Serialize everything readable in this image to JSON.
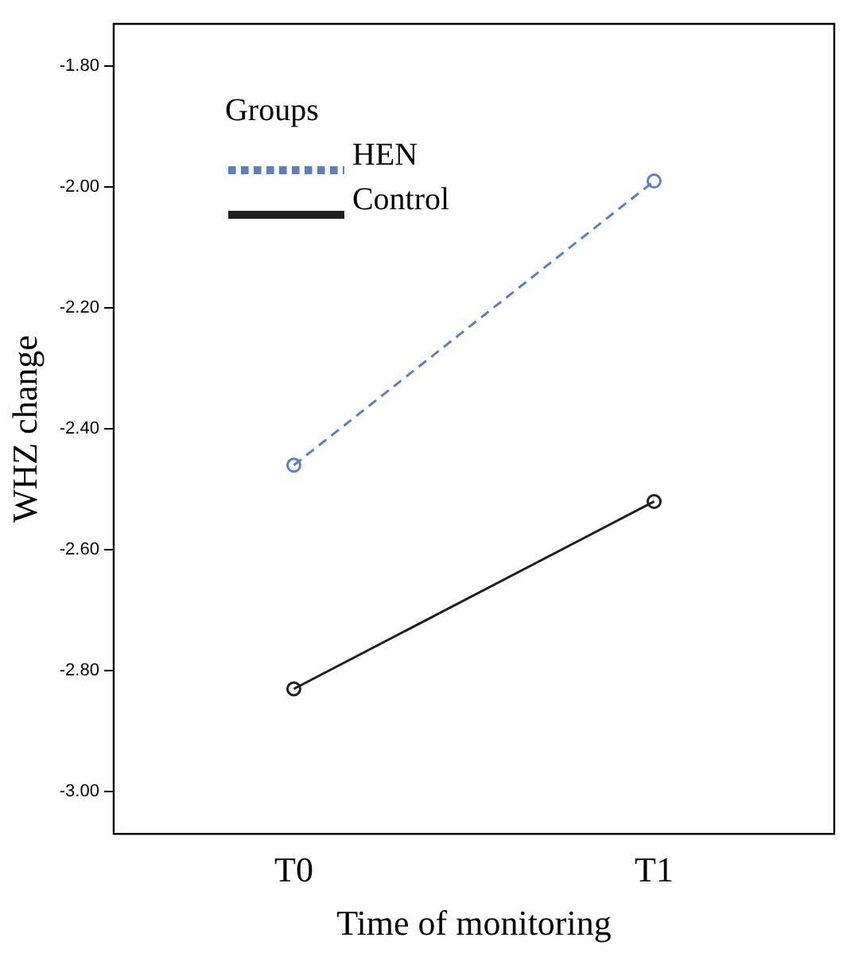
{
  "chart_data": {
    "type": "line",
    "xlabel": "Time of monitoring",
    "ylabel": "WHZ change",
    "legend_title": "Groups",
    "categories": [
      "T0",
      "T1"
    ],
    "series": [
      {
        "name": "HEN",
        "color": "#5b7fc7",
        "values": [
          -2.46,
          -1.99
        ],
        "line_style": "dashed"
      },
      {
        "name": "Control",
        "color": "#1f1f1f",
        "values": [
          -2.83,
          -2.52
        ],
        "line_style": "solid"
      }
    ],
    "ylim": [
      -3.07,
      -1.73
    ],
    "yticks": [
      {
        "value": -3.0,
        "label": "-3.00"
      },
      {
        "value": -2.8,
        "label": "-2.80"
      },
      {
        "value": -2.6,
        "label": "-2.60"
      },
      {
        "value": -2.4,
        "label": "-2.40"
      },
      {
        "value": -2.2,
        "label": "-2.20"
      },
      {
        "value": -2.0,
        "label": "-2.00"
      },
      {
        "value": -1.8,
        "label": "-1.80"
      }
    ],
    "grid": false,
    "legend": "top left",
    "marker": "circle"
  }
}
